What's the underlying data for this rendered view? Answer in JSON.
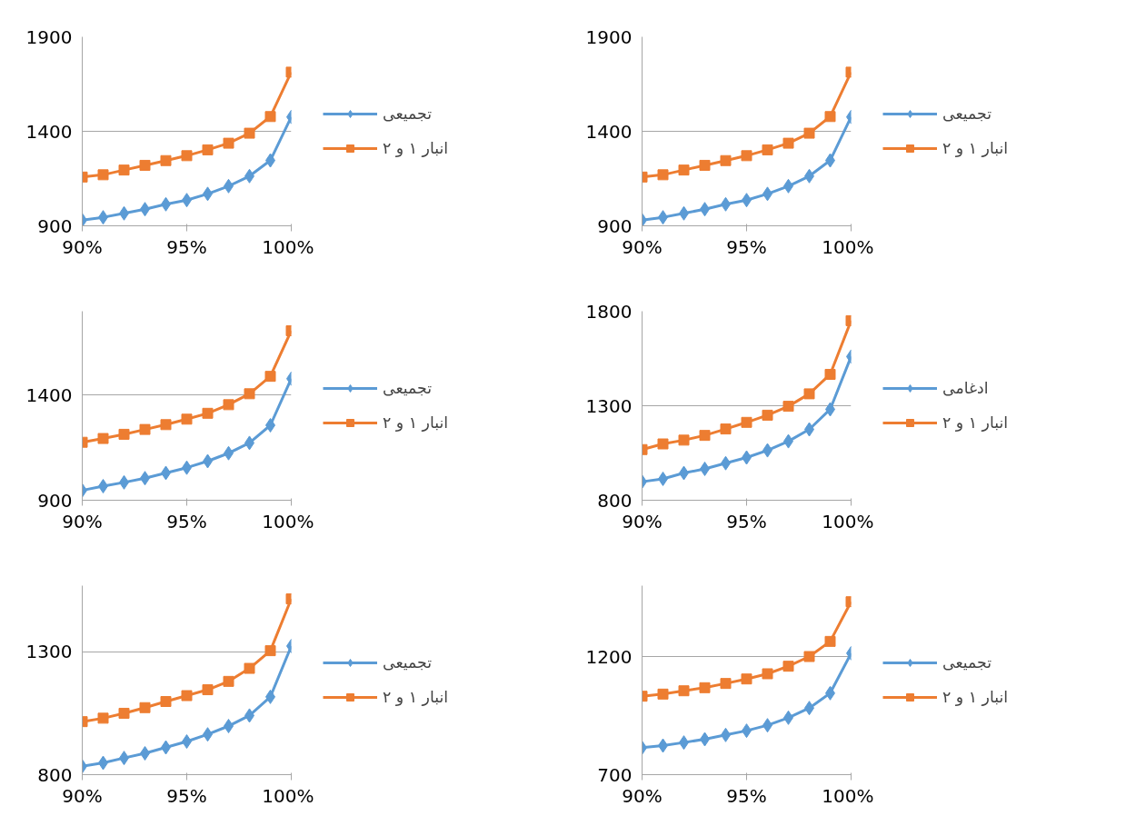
{
  "chart_data": [
    {
      "type": "line",
      "x": [
        90,
        91,
        92,
        93,
        94,
        95,
        96,
        97,
        98,
        99,
        100
      ],
      "xlim": [
        90,
        100
      ],
      "xticks": [
        {
          "value": 90,
          "label": "90%"
        },
        {
          "value": 95,
          "label": "95%"
        },
        {
          "value": 100,
          "label": "100%"
        }
      ],
      "ylim": [
        900,
        1900
      ],
      "yticks": [
        900,
        1400,
        1900
      ],
      "grid": "y",
      "legend": "right",
      "line_style": "solid",
      "series": [
        {
          "name": "تجمیعی",
          "color": "#5b9bd5",
          "marker": "diamond",
          "values": [
            930,
            945,
            966,
            988,
            1014,
            1036,
            1069,
            1110,
            1163,
            1246,
            1476
          ]
        },
        {
          "name": "انبار ۱ و ۲",
          "color": "#ed7d31",
          "marker": "square",
          "values": [
            1158,
            1170,
            1195,
            1220,
            1245,
            1271,
            1302,
            1337,
            1390,
            1478,
            1713
          ]
        }
      ]
    },
    {
      "type": "line",
      "x": [
        90,
        91,
        92,
        93,
        94,
        95,
        96,
        97,
        98,
        99,
        100
      ],
      "xlim": [
        90,
        100
      ],
      "xticks": [
        {
          "value": 90,
          "label": "90%"
        },
        {
          "value": 95,
          "label": "95%"
        },
        {
          "value": 100,
          "label": "100%"
        }
      ],
      "ylim": [
        900,
        1900
      ],
      "yticks": [
        900,
        1400,
        1900
      ],
      "grid": "y",
      "legend": "right",
      "line_style": "solid",
      "series": [
        {
          "name": "تجمیعی",
          "color": "#5b9bd5",
          "marker": "diamond",
          "values": [
            930,
            945,
            966,
            988,
            1014,
            1036,
            1069,
            1110,
            1163,
            1246,
            1476
          ]
        },
        {
          "name": "انبار ۱ و ۲",
          "color": "#ed7d31",
          "marker": "square",
          "values": [
            1158,
            1170,
            1195,
            1220,
            1245,
            1271,
            1302,
            1337,
            1390,
            1478,
            1713
          ]
        }
      ]
    },
    {
      "type": "line",
      "x": [
        90,
        91,
        92,
        93,
        94,
        95,
        96,
        97,
        98,
        99,
        100
      ],
      "xlim": [
        90,
        100
      ],
      "xticks": [
        {
          "value": 90,
          "label": "90%"
        },
        {
          "value": 95,
          "label": "95%"
        },
        {
          "value": 100,
          "label": "100%"
        }
      ],
      "ylim": [
        900,
        1800
      ],
      "yticks": [
        900,
        1400
      ],
      "grid": "y",
      "legend": "right",
      "line_style": "solid",
      "series": [
        {
          "name": "تجمیعی",
          "color": "#5b9bd5",
          "marker": "diamond",
          "values": [
            947,
            967,
            985,
            1005,
            1030,
            1055,
            1086,
            1124,
            1173,
            1257,
            1479
          ]
        },
        {
          "name": "انبار ۱ و ۲",
          "color": "#ed7d31",
          "marker": "square",
          "values": [
            1176,
            1194,
            1214,
            1237,
            1260,
            1286,
            1314,
            1355,
            1407,
            1490,
            1707
          ]
        }
      ]
    },
    {
      "type": "line",
      "x": [
        90,
        91,
        92,
        93,
        94,
        95,
        96,
        97,
        98,
        99,
        100
      ],
      "xlim": [
        90,
        100
      ],
      "xticks": [
        {
          "value": 90,
          "label": "90%"
        },
        {
          "value": 95,
          "label": "95%"
        },
        {
          "value": 100,
          "label": "100%"
        }
      ],
      "ylim": [
        800,
        1800
      ],
      "yticks": [
        800,
        1300,
        1800
      ],
      "grid": "y",
      "legend": "right",
      "line_style": "solid",
      "series": [
        {
          "name": "ادغامی",
          "color": "#5b9bd5",
          "marker": "diamond",
          "values": [
            898,
            913,
            944,
            966,
            996,
            1026,
            1064,
            1112,
            1175,
            1281,
            1560
          ]
        },
        {
          "name": "انبار ۱ و ۲",
          "color": "#ed7d31",
          "marker": "square",
          "values": [
            1068,
            1098,
            1118,
            1143,
            1177,
            1212,
            1250,
            1297,
            1363,
            1466,
            1750
          ]
        }
      ]
    },
    {
      "type": "line",
      "x": [
        90,
        91,
        92,
        93,
        94,
        95,
        96,
        97,
        98,
        99,
        100
      ],
      "xlim": [
        90,
        100
      ],
      "xticks": [
        {
          "value": 90,
          "label": "90%"
        },
        {
          "value": 95,
          "label": "95%"
        },
        {
          "value": 100,
          "label": "100%"
        }
      ],
      "ylim": [
        800,
        1570
      ],
      "yticks": [
        800,
        1300
      ],
      "grid": "y",
      "legend": "right",
      "line_style": "solid",
      "series": [
        {
          "name": "تجمیعی",
          "color": "#5b9bd5",
          "marker": "diamond",
          "values": [
            834,
            848,
            868,
            887,
            911,
            935,
            964,
            998,
            1041,
            1117,
            1324
          ]
        },
        {
          "name": "انبار ۱ و ۲",
          "color": "#ed7d31",
          "marker": "square",
          "values": [
            1016,
            1030,
            1050,
            1073,
            1098,
            1122,
            1146,
            1180,
            1233,
            1305,
            1516
          ]
        }
      ]
    },
    {
      "type": "line",
      "x": [
        90,
        91,
        92,
        93,
        94,
        95,
        96,
        97,
        98,
        99,
        100
      ],
      "xlim": [
        90,
        100
      ],
      "xticks": [
        {
          "value": 90,
          "label": "90%"
        },
        {
          "value": 95,
          "label": "95%"
        },
        {
          "value": 100,
          "label": "100%"
        }
      ],
      "ylim": [
        700,
        1500
      ],
      "yticks": [
        700,
        1200
      ],
      "grid": "y",
      "legend": "right",
      "line_style": "solid",
      "series": [
        {
          "name": "تجمیعی",
          "color": "#5b9bd5",
          "marker": "diamond",
          "values": [
            814,
            823,
            836,
            850,
            868,
            886,
            909,
            941,
            982,
            1045,
            1214
          ]
        },
        {
          "name": "انبار ۱ و ۲",
          "color": "#ed7d31",
          "marker": "square",
          "values": [
            1032,
            1041,
            1055,
            1068,
            1086,
            1105,
            1127,
            1159,
            1200,
            1264,
            1432
          ]
        }
      ]
    }
  ]
}
